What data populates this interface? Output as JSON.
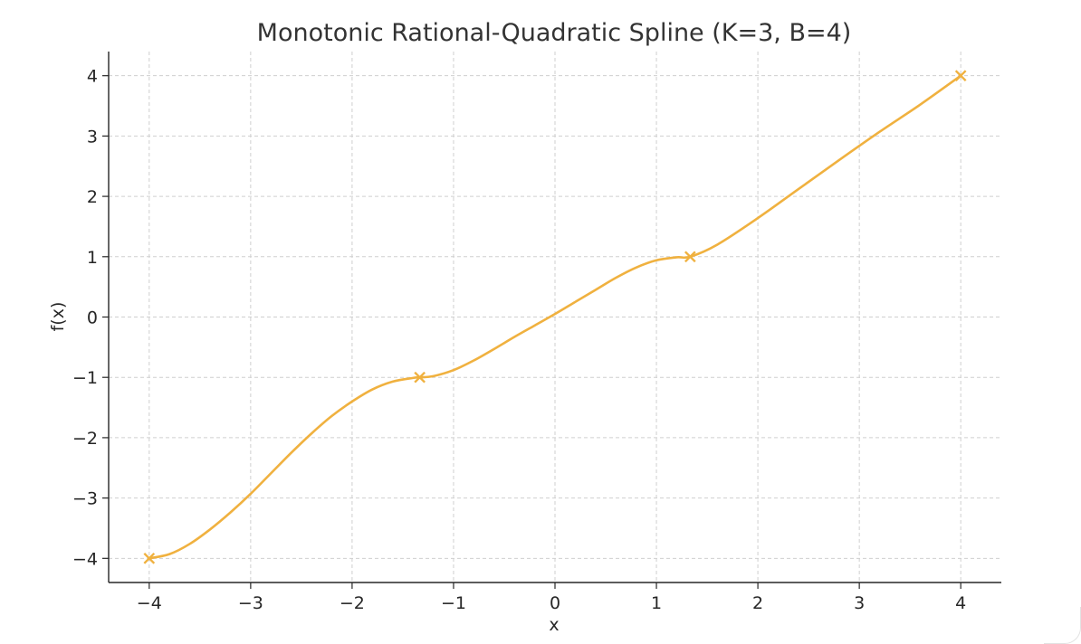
{
  "chart_data": {
    "type": "line",
    "title": "Monotonic Rational-Quadratic Spline (K=3, B=4)",
    "xlabel": "x",
    "ylabel": "f(x)",
    "xlim": [
      -4.4,
      4.4
    ],
    "ylim": [
      -4.4,
      4.4
    ],
    "xticks": [
      -4,
      -3,
      -2,
      -1,
      0,
      1,
      2,
      3,
      4
    ],
    "yticks": [
      -4,
      -3,
      -2,
      -1,
      0,
      1,
      2,
      3,
      4
    ],
    "xtick_labels": [
      "−4",
      "−3",
      "−2",
      "−1",
      "0",
      "1",
      "2",
      "3",
      "4"
    ],
    "ytick_labels": [
      "−4",
      "−3",
      "−2",
      "−1",
      "0",
      "1",
      "2",
      "3",
      "4"
    ],
    "grid": true,
    "color": "#f0b13f",
    "series": [
      {
        "x": [
          -4.0,
          -3.8,
          -3.6,
          -3.4,
          -3.2,
          -3.0,
          -2.8,
          -2.6,
          -2.4,
          -2.2,
          -2.0,
          -1.8,
          -1.6,
          -1.4,
          -1.333,
          -1.2,
          -1.0,
          -0.8,
          -0.6,
          -0.4,
          -0.2,
          0.0,
          0.2,
          0.4,
          0.6,
          0.8,
          1.0,
          1.2,
          1.333,
          1.6,
          2.0,
          2.4,
          2.8,
          3.2,
          3.6,
          4.0
        ],
        "y": [
          -4.0,
          -3.93,
          -3.76,
          -3.52,
          -3.24,
          -2.93,
          -2.59,
          -2.25,
          -1.93,
          -1.64,
          -1.4,
          -1.2,
          -1.07,
          -1.01,
          -1.0,
          -0.98,
          -0.88,
          -0.72,
          -0.53,
          -0.33,
          -0.14,
          0.05,
          0.25,
          0.45,
          0.65,
          0.82,
          0.94,
          0.99,
          1.0,
          1.2,
          1.64,
          2.12,
          2.6,
          3.07,
          3.52,
          4.0
        ]
      }
    ],
    "knots": {
      "x": [
        -4.0,
        -1.333,
        1.333,
        4.0
      ],
      "y": [
        -4.0,
        -1.0,
        1.0,
        4.0
      ]
    }
  }
}
